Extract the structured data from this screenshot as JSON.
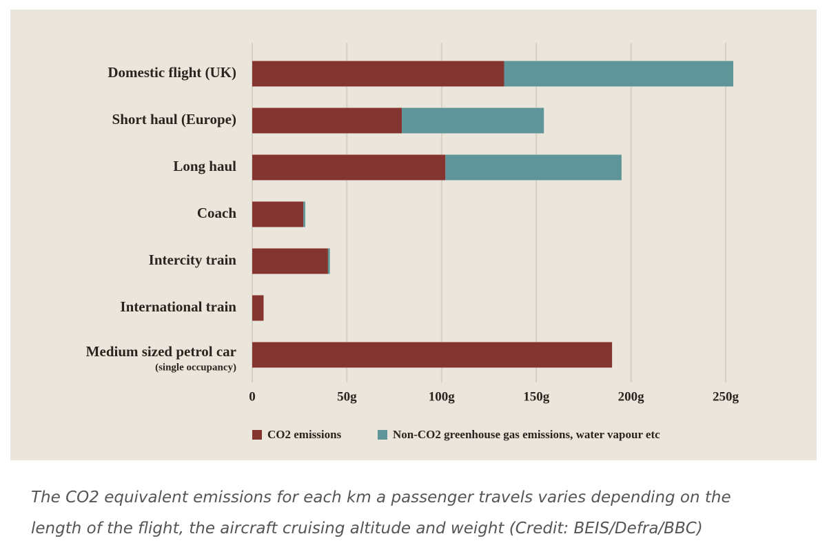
{
  "chart_data": {
    "type": "bar",
    "orientation": "horizontal",
    "stacked": true,
    "categories": [
      "Domestic flight (UK)",
      "Short haul (Europe)",
      "Long haul",
      "Coach",
      "Intercity train",
      "International train",
      "Medium sized petrol car"
    ],
    "category_subtitles": [
      null,
      null,
      null,
      null,
      null,
      null,
      "(single occupancy)"
    ],
    "series": [
      {
        "name": "CO2 emissions",
        "color": "#843530",
        "values": [
          133,
          79,
          102,
          27,
          40,
          6,
          190
        ]
      },
      {
        "name": "Non-CO2 greenhouse gas emissions, water vapour etc",
        "color": "#5f9598",
        "values": [
          121,
          75,
          93,
          1,
          1,
          null,
          null
        ]
      }
    ],
    "xlim": [
      0,
      250
    ],
    "xticks": [
      0,
      {
        "value": 50,
        "label": "50g"
      },
      {
        "value": 100,
        "label": "100g"
      },
      {
        "value": 150,
        "label": "150g"
      },
      {
        "value": 200,
        "label": "200g"
      },
      {
        "value": 250,
        "label": "250g"
      }
    ],
    "grid": true,
    "legend": "bottom"
  },
  "caption": "The CO2 equivalent emissions for each km a passenger travels varies depending on the length of the flight, the aircraft cruising altitude and weight (Credit: BEIS/Defra/BBC)"
}
